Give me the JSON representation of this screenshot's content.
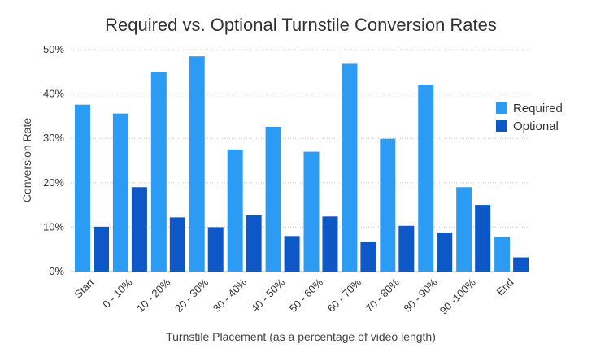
{
  "chart_data": {
    "type": "bar",
    "title": "Required vs. Optional Turnstile Conversion Rates",
    "xlabel": "Turnstile Placement (as a percentage of video length)",
    "ylabel": "Conversion Rate",
    "ylim": [
      0,
      50
    ],
    "yticks": [
      0,
      10,
      20,
      30,
      40,
      50
    ],
    "ytick_labels": [
      "0%",
      "10%",
      "20%",
      "30%",
      "40%",
      "50%"
    ],
    "grid": true,
    "legend_position": "right",
    "categories": [
      "Start",
      "0 - 10%",
      "10 - 20%",
      "20 - 30%",
      "30 - 40%",
      "40 - 50%",
      "50 - 60%",
      "60 - 70%",
      "70 - 80%",
      "80 - 90%",
      "90 -100%",
      "End"
    ],
    "series": [
      {
        "name": "Required",
        "color": "#2b9bf4",
        "values": [
          37.6,
          35.6,
          45.0,
          48.5,
          27.5,
          32.6,
          27.0,
          46.8,
          29.9,
          42.1,
          19.0,
          7.7
        ]
      },
      {
        "name": "Optional",
        "color": "#0d57c7",
        "values": [
          10.1,
          19.0,
          12.2,
          10.0,
          12.7,
          8.0,
          12.4,
          6.6,
          10.3,
          8.8,
          15.0,
          3.2
        ]
      }
    ]
  }
}
